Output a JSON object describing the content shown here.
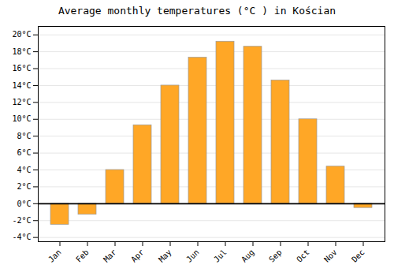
{
  "chart_data": {
    "type": "bar",
    "title": "Average monthly temperatures (°C ) in Kościan",
    "categories": [
      "Jan",
      "Feb",
      "Mar",
      "Apr",
      "May",
      "Jun",
      "Jul",
      "Aug",
      "Sep",
      "Oct",
      "Nov",
      "Dec"
    ],
    "values": [
      -2.5,
      -1.3,
      4.0,
      9.3,
      14.0,
      17.3,
      19.2,
      18.6,
      14.6,
      10.0,
      4.4,
      -0.5
    ],
    "color": "#FFA726",
    "ylim": [
      -4.5,
      21
    ],
    "yticks": [
      {
        "value": -4,
        "label": "-4°C"
      },
      {
        "value": -2,
        "label": "-2°C"
      },
      {
        "value": 0,
        "label": "0°C"
      },
      {
        "value": 2,
        "label": "2°C"
      },
      {
        "value": 4,
        "label": "4°C"
      },
      {
        "value": 6,
        "label": "6°C"
      },
      {
        "value": 8,
        "label": "8°C"
      },
      {
        "value": 10,
        "label": "10°C"
      },
      {
        "value": 12,
        "label": "12°C"
      },
      {
        "value": 14,
        "label": "14°C"
      },
      {
        "value": 16,
        "label": "16°C"
      },
      {
        "value": 18,
        "label": "18°C"
      },
      {
        "value": 20,
        "label": "20°C"
      }
    ],
    "grid": true
  }
}
